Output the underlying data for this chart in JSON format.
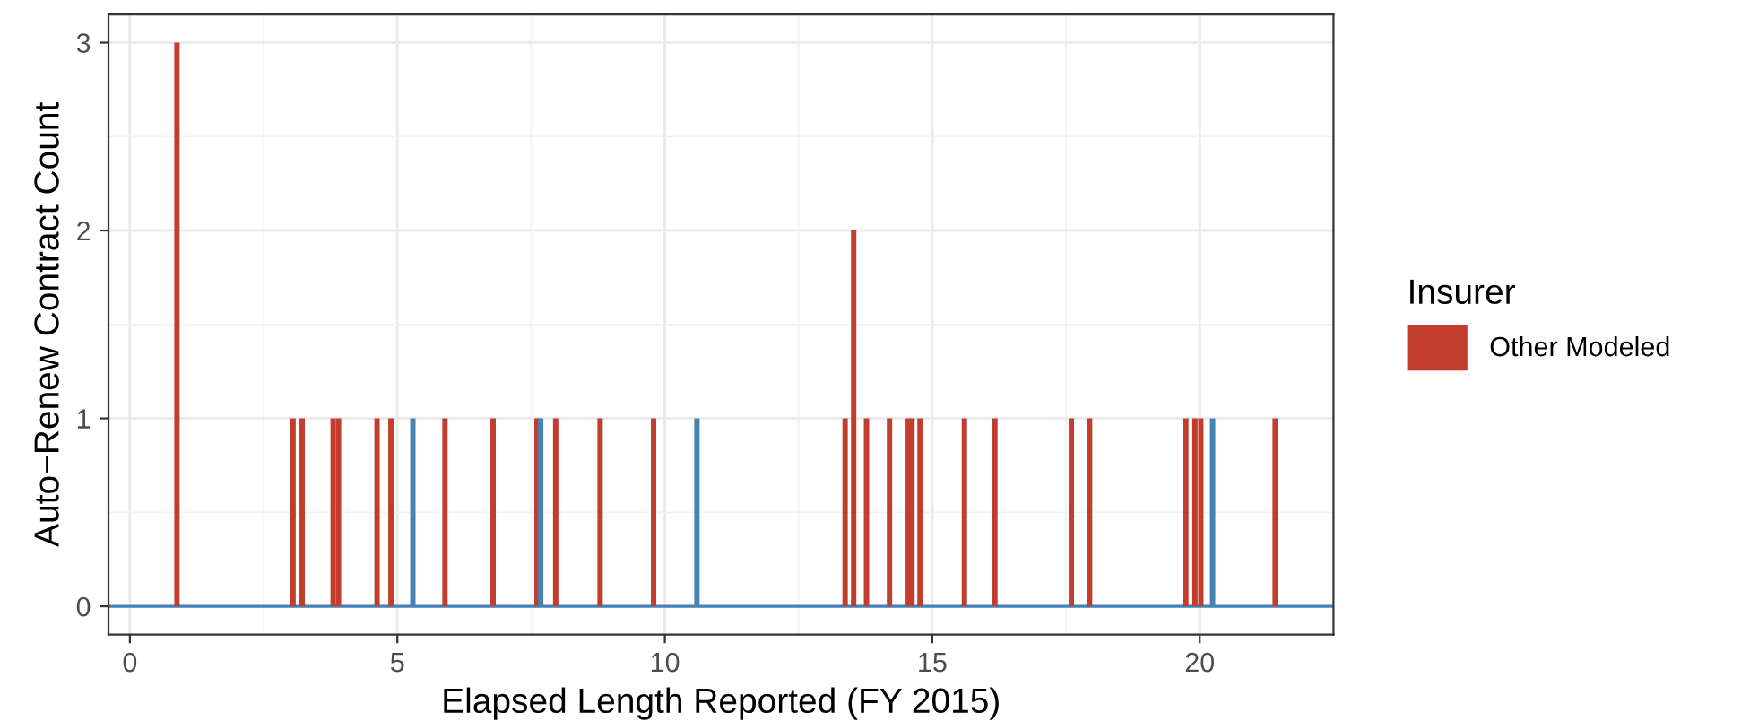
{
  "chart_data": {
    "type": "bar",
    "xlabel": "Elapsed Length Reported (FY 2015)",
    "ylabel": "Auto−Renew Contract Count",
    "legend_title": "Insurer",
    "series": [
      {
        "name": "Other Modeled",
        "color": "#c33d2d",
        "x": [
          0.88,
          3.05,
          3.22,
          3.8,
          3.9,
          4.62,
          4.88,
          5.89,
          6.79,
          7.61,
          7.96,
          8.79,
          9.79,
          13.37,
          13.53,
          13.77,
          14.2,
          14.55,
          14.62,
          14.77,
          15.6,
          16.17,
          17.6,
          17.94,
          19.74,
          19.91,
          20.02,
          21.41
        ],
        "values": [
          3,
          1,
          1,
          1,
          1,
          1,
          1,
          1,
          1,
          1,
          1,
          1,
          1,
          1,
          2,
          1,
          1,
          1,
          1,
          1,
          1,
          1,
          1,
          1,
          1,
          1,
          1,
          1
        ]
      },
      {
        "color": "#4682b4",
        "x": [
          5.29,
          7.68,
          10.6,
          20.24
        ],
        "values": [
          1,
          1,
          1,
          1
        ]
      }
    ],
    "ref_lines": [
      {
        "axis": "y",
        "value": 0,
        "color": "#4682b4"
      }
    ],
    "xlim": [
      -0.4,
      22.5
    ],
    "xticks": [
      0,
      5,
      10,
      15,
      20
    ],
    "ylim": [
      -0.15,
      3.15
    ],
    "yticks": [
      0,
      1,
      2,
      3
    ],
    "grid": true,
    "legend": "right"
  }
}
